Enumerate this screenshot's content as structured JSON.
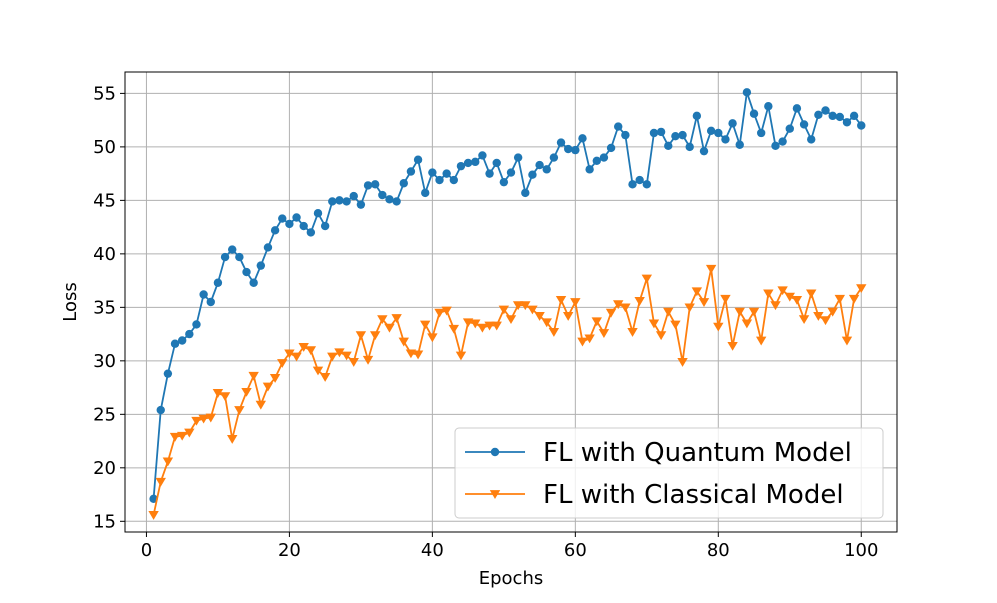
{
  "chart_data": {
    "type": "line",
    "title": "",
    "xlabel": "Epochs",
    "ylabel": "Loss",
    "xlim": [
      -3,
      105
    ],
    "ylim": [
      14,
      57
    ],
    "xticks": [
      0,
      20,
      40,
      60,
      80,
      100
    ],
    "yticks": [
      15,
      20,
      25,
      30,
      35,
      40,
      45,
      50,
      55
    ],
    "grid": true,
    "legend_position": "lower-right",
    "x": [
      1,
      2,
      3,
      4,
      5,
      6,
      7,
      8,
      9,
      10,
      11,
      12,
      13,
      14,
      15,
      16,
      17,
      18,
      19,
      20,
      21,
      22,
      23,
      24,
      25,
      26,
      27,
      28,
      29,
      30,
      31,
      32,
      33,
      34,
      35,
      36,
      37,
      38,
      39,
      40,
      41,
      42,
      43,
      44,
      45,
      46,
      47,
      48,
      49,
      50,
      51,
      52,
      53,
      54,
      55,
      56,
      57,
      58,
      59,
      60,
      61,
      62,
      63,
      64,
      65,
      66,
      67,
      68,
      69,
      70,
      71,
      72,
      73,
      74,
      75,
      76,
      77,
      78,
      79,
      80,
      81,
      82,
      83,
      84,
      85,
      86,
      87,
      88,
      89,
      90,
      91,
      92,
      93,
      94,
      95,
      96,
      97,
      98,
      99,
      100
    ],
    "series": [
      {
        "name": "FL with Quantum Model",
        "color": "#1f77b4",
        "marker": "circle",
        "values": [
          17.1,
          25.4,
          28.8,
          31.6,
          31.9,
          32.5,
          33.4,
          36.2,
          35.5,
          37.3,
          39.7,
          40.4,
          39.7,
          38.3,
          37.3,
          38.9,
          40.6,
          42.2,
          43.3,
          42.8,
          43.4,
          42.6,
          42.0,
          43.8,
          42.6,
          44.9,
          45.0,
          44.9,
          45.4,
          44.6,
          46.4,
          46.5,
          45.5,
          45.1,
          44.9,
          46.6,
          47.7,
          48.8,
          45.7,
          47.6,
          46.9,
          47.5,
          46.9,
          48.2,
          48.5,
          48.6,
          49.2,
          47.5,
          48.5,
          46.7,
          47.6,
          49.0,
          45.7,
          47.4,
          48.3,
          47.9,
          49.0,
          50.4,
          49.8,
          49.7,
          50.8,
          47.9,
          48.7,
          49.0,
          49.9,
          51.9,
          51.1,
          46.5,
          46.9,
          46.5,
          51.3,
          51.4,
          50.1,
          51.0,
          51.1,
          50.0,
          52.9,
          49.6,
          51.5,
          51.3,
          50.7,
          52.2,
          50.2,
          55.1,
          53.1,
          51.3,
          53.8,
          50.1,
          50.5,
          51.7,
          53.6,
          52.1,
          50.7,
          53.0,
          53.4,
          52.9,
          52.8,
          52.3,
          52.9,
          52.0
        ]
      },
      {
        "name": "FL with Classical Model",
        "color": "#ff7f0e",
        "marker": "triangle-down",
        "values": [
          15.6,
          18.7,
          20.6,
          22.9,
          23.0,
          23.3,
          24.4,
          24.6,
          24.7,
          27.0,
          26.7,
          22.7,
          25.4,
          27.1,
          28.6,
          25.9,
          27.6,
          28.4,
          29.8,
          30.7,
          30.4,
          31.3,
          31.0,
          29.1,
          28.5,
          30.4,
          30.8,
          30.5,
          29.9,
          32.4,
          30.1,
          32.4,
          33.9,
          33.1,
          34.0,
          31.8,
          30.7,
          30.6,
          33.4,
          32.2,
          34.5,
          34.7,
          33.0,
          30.5,
          33.6,
          33.5,
          33.1,
          33.3,
          33.3,
          34.8,
          33.9,
          35.2,
          35.2,
          34.8,
          34.2,
          33.6,
          32.7,
          35.7,
          34.2,
          35.5,
          31.8,
          32.1,
          33.7,
          32.6,
          34.5,
          35.3,
          35.0,
          32.7,
          35.6,
          37.7,
          33.5,
          32.4,
          34.6,
          33.4,
          29.9,
          35.0,
          36.5,
          35.5,
          38.6,
          33.2,
          35.8,
          31.4,
          34.6,
          33.5,
          34.6,
          31.9,
          36.3,
          35.2,
          36.6,
          36.0,
          35.7,
          33.9,
          36.3,
          34.2,
          33.8,
          34.6,
          35.8,
          31.9,
          35.8,
          36.8
        ]
      }
    ]
  }
}
